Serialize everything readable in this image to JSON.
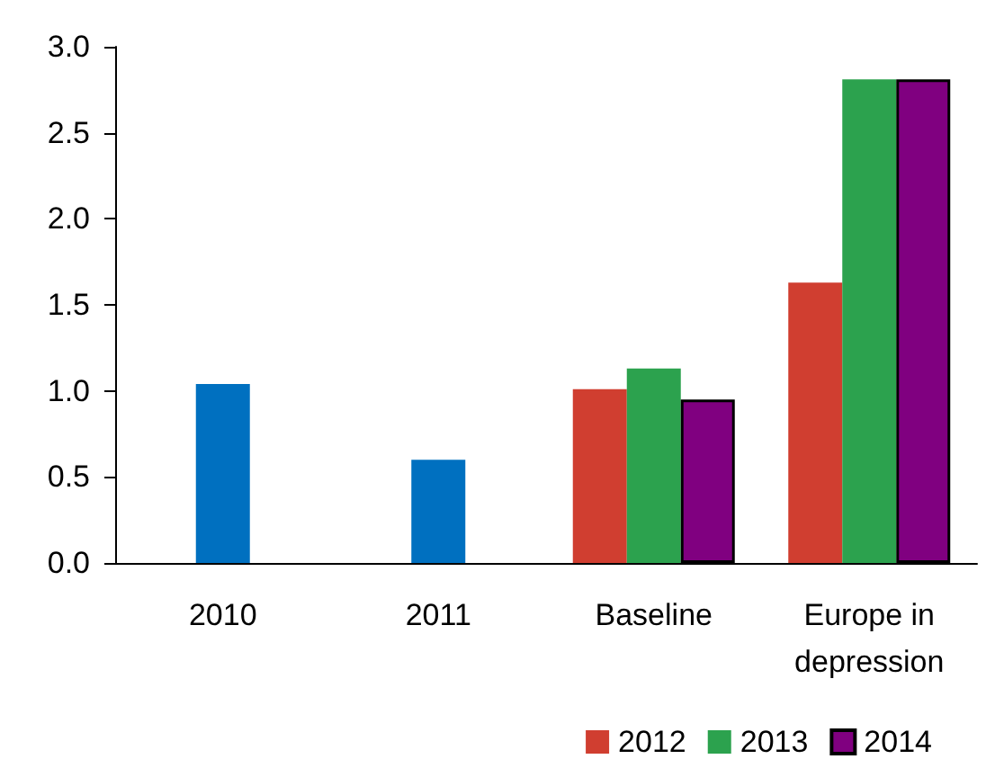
{
  "chart_data": {
    "type": "bar",
    "categories": [
      "2010",
      "2011",
      "Baseline",
      "Europe in\ndepression"
    ],
    "series": [
      {
        "color": "#0070c0",
        "values": [
          1.04,
          0.6,
          null,
          null
        ]
      },
      {
        "name": "2012",
        "color": "#d03e30",
        "values": [
          null,
          null,
          1.01,
          1.63
        ]
      },
      {
        "name": "2013",
        "color": "#2ca24e",
        "values": [
          null,
          null,
          1.13,
          2.81
        ]
      },
      {
        "name": "2014",
        "color": "#800080",
        "values": [
          null,
          null,
          0.95,
          2.81
        ]
      }
    ],
    "ylim": [
      0,
      3
    ],
    "yticks": [
      {
        "value": 0,
        "label": "0.0"
      },
      0.5,
      {
        "value": 1,
        "label": "1.0"
      },
      1.5,
      {
        "value": 2,
        "label": "2.0"
      },
      2.5,
      {
        "value": 3,
        "label": "3.0"
      }
    ],
    "grid": false,
    "legend": "bottom right"
  }
}
